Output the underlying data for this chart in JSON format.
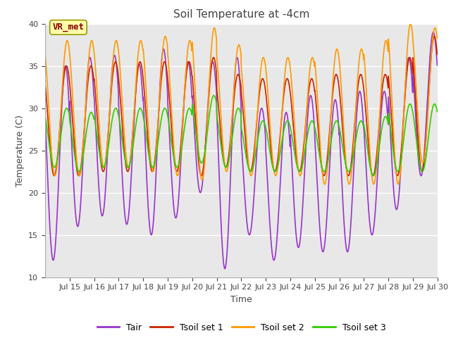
{
  "title": "Soil Temperature at -4cm",
  "xlabel": "Time",
  "ylabel": "Temperature (C)",
  "ylim": [
    10,
    40
  ],
  "yticks": [
    10,
    15,
    20,
    25,
    30,
    35,
    40
  ],
  "figure_bg": "#ffffff",
  "plot_bg_color": "#e8e8e8",
  "legend_labels": [
    "Tair",
    "Tsoil set 1",
    "Tsoil set 2",
    "Tsoil set 3"
  ],
  "legend_colors": [
    "#9933cc",
    "#cc2200",
    "#ff9900",
    "#33cc00"
  ],
  "annotation_text": "VR_met",
  "annotation_color": "#8b0000",
  "annotation_bg": "#ffffaa",
  "annotation_edge": "#999900",
  "n_days": 16,
  "pts_per_day": 96,
  "start_day": 14,
  "xlim": [
    14,
    30
  ],
  "xtick_days": [
    15,
    16,
    17,
    18,
    19,
    20,
    21,
    22,
    23,
    24,
    25,
    26,
    27,
    28,
    29,
    30
  ],
  "xtick_labels": [
    "Jul 15",
    "Jul 16",
    "Jul 17",
    "Jul 18",
    "Jul 19",
    "Jul 20",
    "Jul 21",
    "Jul 22",
    "Jul 23",
    "Jul 24",
    "Jul 25",
    "Jul 26",
    "Jul 27",
    "Jul 28",
    "Jul 29",
    "Jul 30"
  ],
  "means_air": [
    23.5,
    26.0,
    26.75,
    25.75,
    26.0,
    26.25,
    27.75,
    23.5,
    22.5,
    20.75,
    22.5,
    22.0,
    22.5,
    23.5,
    27.0,
    30.5
  ],
  "amps_air": [
    11.5,
    10.0,
    9.5,
    9.5,
    11.0,
    9.25,
    7.75,
    12.5,
    7.5,
    8.75,
    9.0,
    9.0,
    9.5,
    8.5,
    9.0,
    8.5
  ],
  "means_s1": [
    28.5,
    28.5,
    29.0,
    29.0,
    29.0,
    29.0,
    29.0,
    28.5,
    28.0,
    28.0,
    28.0,
    28.0,
    28.0,
    28.0,
    29.0,
    30.5
  ],
  "amps_s1": [
    6.5,
    6.5,
    6.5,
    6.5,
    6.5,
    6.5,
    7.0,
    5.5,
    5.5,
    5.5,
    5.5,
    6.0,
    6.0,
    6.0,
    7.0,
    8.0
  ],
  "means_s2": [
    30.0,
    30.0,
    30.5,
    30.5,
    30.5,
    30.0,
    30.5,
    30.0,
    29.0,
    29.0,
    29.0,
    29.0,
    29.0,
    29.5,
    30.5,
    31.5
  ],
  "amps_s2": [
    8.0,
    8.0,
    7.5,
    7.5,
    8.0,
    8.0,
    9.0,
    7.5,
    7.0,
    7.0,
    7.0,
    8.0,
    8.0,
    8.5,
    9.5,
    8.0
  ],
  "means_s3": [
    26.5,
    26.0,
    26.5,
    26.5,
    26.5,
    26.5,
    27.5,
    26.5,
    25.5,
    25.5,
    25.5,
    25.5,
    25.5,
    25.5,
    26.5,
    26.5
  ],
  "amps_s3": [
    3.5,
    3.5,
    3.5,
    3.5,
    3.5,
    3.5,
    4.0,
    3.5,
    3.0,
    3.0,
    3.0,
    3.0,
    3.0,
    3.5,
    4.0,
    4.0
  ],
  "phase_air": 3.644,
  "phase_s1": 3.896,
  "phase_s2": 4.084,
  "phase_s3": 3.958
}
